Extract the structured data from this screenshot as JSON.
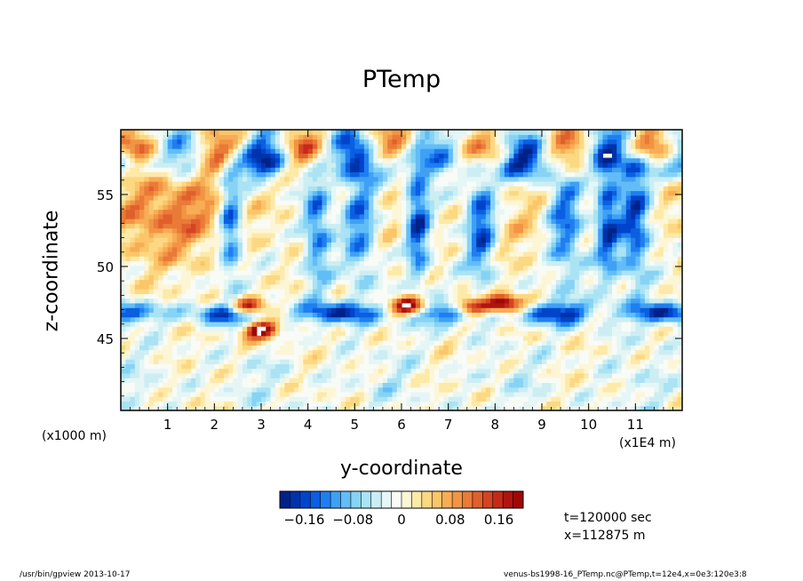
{
  "title": "PTemp",
  "footer": {
    "left": "/usr/bin/gpview   2013-10-17",
    "right": "venus-bs1998-16_PTemp.nc@PTemp,t=12e4,x=0e3:120e3:8"
  },
  "annotations": {
    "time": "t=120000 sec",
    "position": "x=112875 m"
  },
  "chart_data": {
    "type": "heatmap",
    "title": "PTemp",
    "xlabel": "y-coordinate",
    "ylabel": "z-coordinate",
    "x_units_left": "(x1000 m)",
    "x_units_right": "(x1E4 m)",
    "xlim": [
      0,
      12
    ],
    "ylim": [
      40,
      59.5
    ],
    "x_ticks": [
      "1",
      "2",
      "3",
      "4",
      "5",
      "6",
      "7",
      "8",
      "9",
      "10",
      "11"
    ],
    "y_ticks": [
      "45",
      "50",
      "55"
    ],
    "colorbar": {
      "range": [
        -0.2,
        0.2
      ],
      "tick_labels": [
        "−0.16",
        "−0.08",
        "0",
        "0.08",
        "0.16"
      ],
      "tick_values": [
        -0.16,
        -0.08,
        0,
        0.08,
        0.16
      ],
      "colors": [
        "#002288",
        "#0033aa",
        "#0044cc",
        "#0b5fe0",
        "#1f7ff0",
        "#3fa0f5",
        "#62bdf7",
        "#86d3f6",
        "#aae3f4",
        "#cceef3",
        "#e6f6f6",
        "#f8fbf6",
        "#fdf6d6",
        "#fde9a8",
        "#fcd882",
        "#fbc56a",
        "#f7ad55",
        "#f29444",
        "#ea7a38",
        "#e0602c",
        "#d44422",
        "#c42a1a",
        "#b01410",
        "#a00808"
      ]
    },
    "field_notes": "Strong negative anomaly band near z=47, positive patches near z=47-48 at y=2.5-3, 6-6.5, 7-8; alternating positive/negative near top (z=57-59)."
  }
}
